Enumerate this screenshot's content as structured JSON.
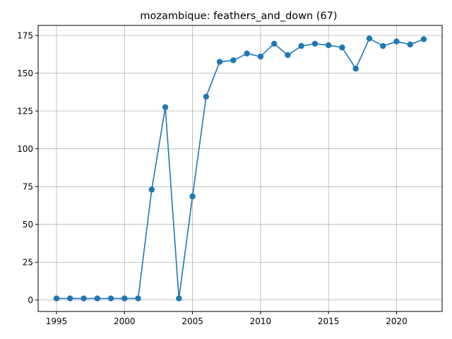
{
  "chart_data": {
    "type": "line",
    "title": "mozambique: feathers_and_down (67)",
    "xlabel": "",
    "ylabel": "",
    "xlim": [
      1993.65,
      2023.35
    ],
    "ylim": [
      -7.6,
      181.6
    ],
    "x_ticks": [
      1995,
      2000,
      2005,
      2010,
      2015,
      2020
    ],
    "y_ticks": [
      0,
      25,
      50,
      75,
      100,
      125,
      150,
      175
    ],
    "grid": true,
    "color": "#1f77b4",
    "marker": "circle",
    "series": [
      {
        "x": [
          1995,
          1996,
          1997,
          1998,
          1999,
          2000,
          2001,
          2002,
          2003,
          2004,
          2005,
          2006,
          2007,
          2008,
          2009,
          2010,
          2011,
          2012,
          2013,
          2014,
          2015,
          2016,
          2017,
          2018,
          2019,
          2020,
          2021,
          2022
        ],
        "y": [
          1,
          1,
          1,
          1,
          1,
          1,
          1,
          73,
          127.5,
          1,
          68.5,
          134.5,
          157.5,
          158.5,
          163,
          161,
          169.5,
          162,
          168,
          169.5,
          168.5,
          167,
          153,
          173,
          168,
          171,
          169,
          172.5
        ]
      }
    ]
  }
}
